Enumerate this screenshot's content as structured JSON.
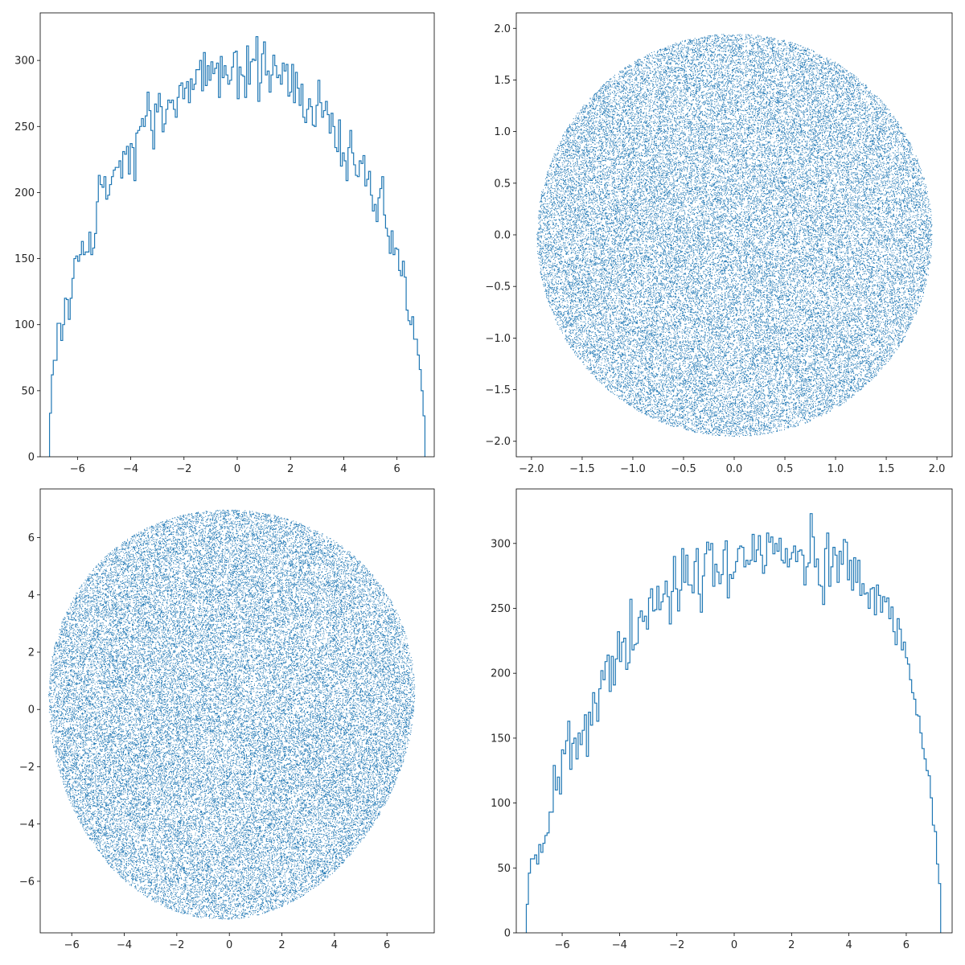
{
  "chart_data": [
    {
      "type": "histogram",
      "position": "top-left",
      "title": "",
      "xlabel": "",
      "ylabel": "",
      "xlim": [
        -7.4,
        7.4
      ],
      "ylim": [
        0,
        336
      ],
      "x_ticks": [
        -6,
        -4,
        -2,
        0,
        2,
        4,
        6
      ],
      "y_ticks": [
        0,
        50,
        100,
        150,
        200,
        250,
        300
      ],
      "color": "#1f77b4",
      "bin_range": [
        -7.05,
        7.05
      ],
      "bins": 200,
      "counts": [
        33,
        62,
        73,
        73,
        101,
        101,
        88,
        100,
        120,
        119,
        104,
        120,
        135,
        150,
        152,
        148,
        153,
        163,
        153,
        155,
        155,
        170,
        153,
        158,
        169,
        193,
        213,
        206,
        204,
        212,
        195,
        198,
        206,
        212,
        217,
        219,
        219,
        224,
        211,
        231,
        229,
        235,
        214,
        237,
        234,
        209,
        245,
        247,
        250,
        256,
        250,
        258,
        276,
        262,
        247,
        233,
        267,
        261,
        275,
        265,
        246,
        252,
        263,
        270,
        268,
        270,
        263,
        257,
        272,
        281,
        283,
        271,
        279,
        284,
        268,
        286,
        278,
        282,
        293,
        293,
        300,
        277,
        306,
        281,
        296,
        285,
        299,
        290,
        294,
        298,
        272,
        303,
        287,
        296,
        289,
        282,
        285,
        295,
        306,
        307,
        271,
        295,
        289,
        288,
        272,
        311,
        282,
        299,
        301,
        300,
        318,
        269,
        283,
        305,
        314,
        289,
        292,
        276,
        289,
        304,
        296,
        287,
        289,
        282,
        298,
        292,
        297,
        273,
        276,
        297,
        268,
        291,
        279,
        266,
        282,
        257,
        253,
        263,
        271,
        265,
        251,
        250,
        266,
        285,
        268,
        257,
        262,
        269,
        259,
        245,
        260,
        250,
        234,
        231,
        255,
        220,
        230,
        224,
        209,
        234,
        247,
        230,
        221,
        213,
        212,
        224,
        222,
        228,
        205,
        210,
        216,
        198,
        186,
        191,
        178,
        196,
        203,
        212,
        183,
        173,
        167,
        154,
        171,
        153,
        158,
        157,
        141,
        137,
        148,
        136,
        111,
        103,
        100,
        106,
        89,
        89,
        77,
        66,
        50,
        31
      ]
    },
    {
      "type": "scatter",
      "position": "top-right",
      "title": "",
      "xlabel": "",
      "ylabel": "",
      "xlim": [
        -2.15,
        2.15
      ],
      "ylim": [
        -2.15,
        2.15
      ],
      "x_ticks": [
        -2.0,
        -1.5,
        -1.0,
        -0.5,
        0.0,
        0.5,
        1.0,
        1.5,
        2.0
      ],
      "x_tick_labels": [
        "−2.0",
        "−1.5",
        "−1.0",
        "−0.5",
        "0.0",
        "0.5",
        "1.0",
        "1.5",
        "2.0"
      ],
      "y_ticks": [
        -2.0,
        -1.5,
        -1.0,
        -0.5,
        0.0,
        0.5,
        1.0,
        1.5,
        2.0
      ],
      "y_tick_labels": [
        "−2.0",
        "−1.5",
        "−1.0",
        "−0.5",
        "0.0",
        "0.5",
        "1.0",
        "1.5",
        "2.0"
      ],
      "color": "#1f77b4",
      "marker": "pixel",
      "n_points": 50000,
      "region": {
        "shape": "disk",
        "center": [
          0,
          0
        ],
        "radius": 1.95
      }
    },
    {
      "type": "scatter",
      "position": "bottom-left",
      "title": "",
      "xlabel": "",
      "ylabel": "",
      "xlim": [
        -7.2,
        7.8
      ],
      "ylim": [
        -7.8,
        7.7
      ],
      "x_ticks": [
        -6,
        -4,
        -2,
        0,
        2,
        4,
        6
      ],
      "y_ticks": [
        -6,
        -4,
        -2,
        0,
        2,
        4,
        6
      ],
      "color": "#1f77b4",
      "marker": "pixel",
      "n_points": 50000,
      "region": {
        "shape": "rounded-triangular blob",
        "x_extent": [
          -7.0,
          7.1
        ],
        "y_extent": [
          -7.2,
          7.2
        ]
      }
    },
    {
      "type": "histogram",
      "position": "bottom-right",
      "title": "",
      "xlabel": "",
      "ylabel": "",
      "xlim": [
        -7.6,
        7.6
      ],
      "ylim": [
        0,
        342
      ],
      "x_ticks": [
        -6,
        -4,
        -2,
        0,
        2,
        4,
        6
      ],
      "y_ticks": [
        0,
        50,
        100,
        150,
        200,
        250,
        300
      ],
      "color": "#1f77b4",
      "bin_range": [
        -7.25,
        7.2
      ],
      "bins": 200,
      "counts": [
        22,
        46,
        57,
        57,
        60,
        53,
        68,
        62,
        69,
        75,
        77,
        93,
        93,
        129,
        110,
        120,
        107,
        141,
        138,
        148,
        163,
        126,
        146,
        150,
        134,
        154,
        145,
        156,
        168,
        136,
        170,
        160,
        185,
        177,
        163,
        188,
        202,
        195,
        209,
        214,
        186,
        213,
        191,
        211,
        232,
        209,
        224,
        227,
        203,
        208,
        257,
        218,
        222,
        223,
        243,
        248,
        240,
        244,
        234,
        258,
        265,
        248,
        249,
        267,
        249,
        255,
        261,
        271,
        259,
        238,
        263,
        290,
        265,
        248,
        264,
        296,
        270,
        291,
        268,
        268,
        262,
        286,
        296,
        261,
        247,
        275,
        292,
        301,
        295,
        300,
        267,
        284,
        278,
        269,
        276,
        295,
        302,
        258,
        276,
        273,
        278,
        286,
        296,
        298,
        297,
        282,
        287,
        284,
        287,
        307,
        286,
        295,
        306,
        291,
        277,
        283,
        308,
        301,
        305,
        292,
        300,
        294,
        304,
        287,
        285,
        296,
        282,
        288,
        293,
        298,
        286,
        294,
        295,
        291,
        268,
        282,
        285,
        323,
        305,
        282,
        288,
        268,
        267,
        253,
        296,
        308,
        267,
        282,
        297,
        291,
        270,
        294,
        284,
        303,
        301,
        272,
        287,
        264,
        289,
        270,
        287,
        260,
        269,
        261,
        262,
        250,
        265,
        266,
        245,
        268,
        260,
        247,
        259,
        255,
        258,
        242,
        251,
        232,
        222,
        242,
        234,
        218,
        224,
        212,
        207,
        195,
        185,
        180,
        168,
        167,
        154,
        142,
        134,
        125,
        121,
        104,
        83,
        78,
        53,
        38
      ]
    }
  ]
}
